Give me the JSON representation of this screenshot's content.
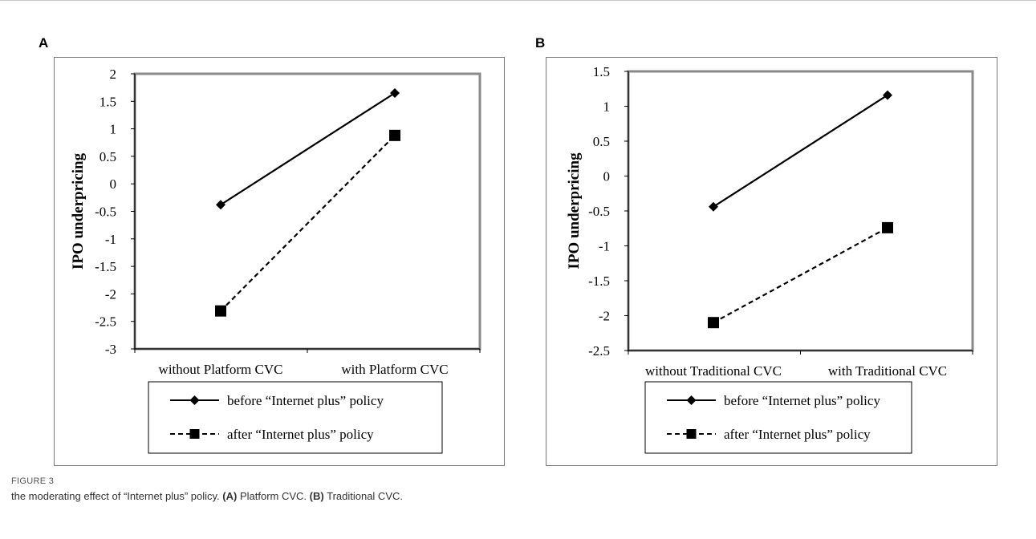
{
  "chart_data": [
    {
      "panel": "A",
      "type": "line",
      "categories": [
        "without Platform CVC",
        "with Platform CVC"
      ],
      "ylabel": "IPO underpricing",
      "ylim": [
        -3,
        2
      ],
      "yticks": [
        2,
        1.5,
        1,
        0.5,
        0,
        -0.5,
        -1,
        -1.5,
        -2,
        -2.5,
        -3
      ],
      "series": [
        {
          "name": "before “Internet plus” policy",
          "values": [
            -0.38,
            1.65
          ],
          "marker": "diamond",
          "line": "solid"
        },
        {
          "name": "after “Internet plus” policy",
          "values": [
            -2.31,
            0.88
          ],
          "marker": "square",
          "line": "dashed"
        }
      ]
    },
    {
      "panel": "B",
      "type": "line",
      "categories": [
        "without Traditional CVC",
        "with Traditional CVC"
      ],
      "ylabel": "IPO underpricing",
      "ylim": [
        -2.5,
        1.5
      ],
      "yticks": [
        1.5,
        1,
        0.5,
        0,
        -0.5,
        -1,
        -1.5,
        -2,
        -2.5
      ],
      "series": [
        {
          "name": "before “Internet plus” policy",
          "values": [
            -0.44,
            1.16
          ],
          "marker": "diamond",
          "line": "solid"
        },
        {
          "name": "after “Internet plus” policy",
          "values": [
            -2.1,
            -0.74
          ],
          "marker": "square",
          "line": "dashed"
        }
      ]
    }
  ],
  "figure": {
    "label": "FIGURE 3",
    "caption_text": "the moderating effect of “Internet plus” policy.",
    "part_a_tag": "(A)",
    "part_a_text": "Platform CVC.",
    "part_b_tag": "(B)",
    "part_b_text": "Traditional CVC."
  }
}
